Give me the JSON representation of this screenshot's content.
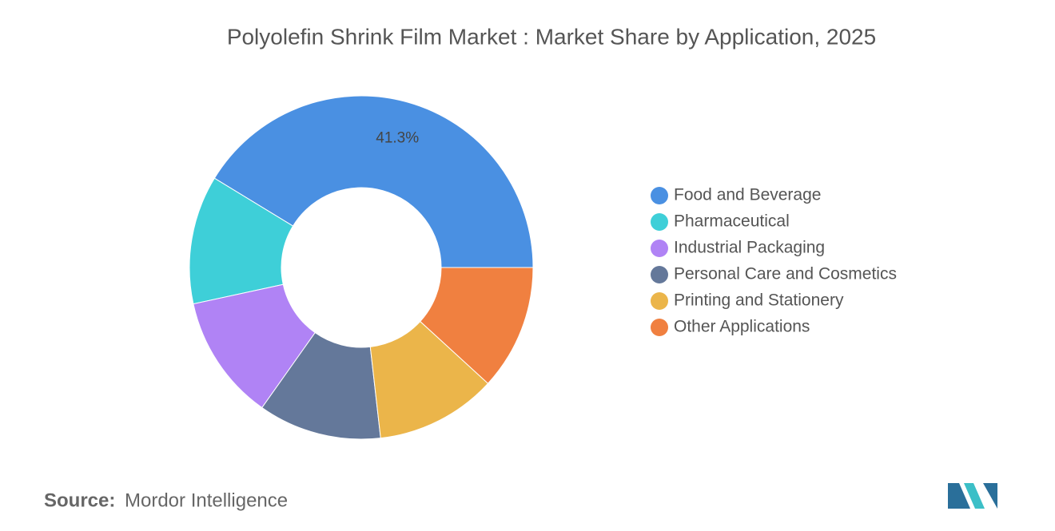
{
  "chart_data": {
    "type": "pie",
    "title": "Polyolefin Shrink Film Market : Market Share by Application, 2025",
    "categories": [
      "Food and Beverage",
      "Pharmaceutical",
      "Industrial Packaging",
      "Personal Care and Cosmetics",
      "Printing and Stationery",
      "Other Applications"
    ],
    "values": [
      41.3,
      12.1,
      11.8,
      11.6,
      11.4,
      11.8
    ],
    "value_labels": [
      "41.3%",
      null,
      null,
      null,
      null,
      null
    ],
    "colors": [
      "#4a90e2",
      "#3ecfd8",
      "#b083f5",
      "#64789a",
      "#ebb54a",
      "#f08040"
    ],
    "donut": true,
    "source_label": "Source:",
    "source": "Mordor Intelligence"
  }
}
